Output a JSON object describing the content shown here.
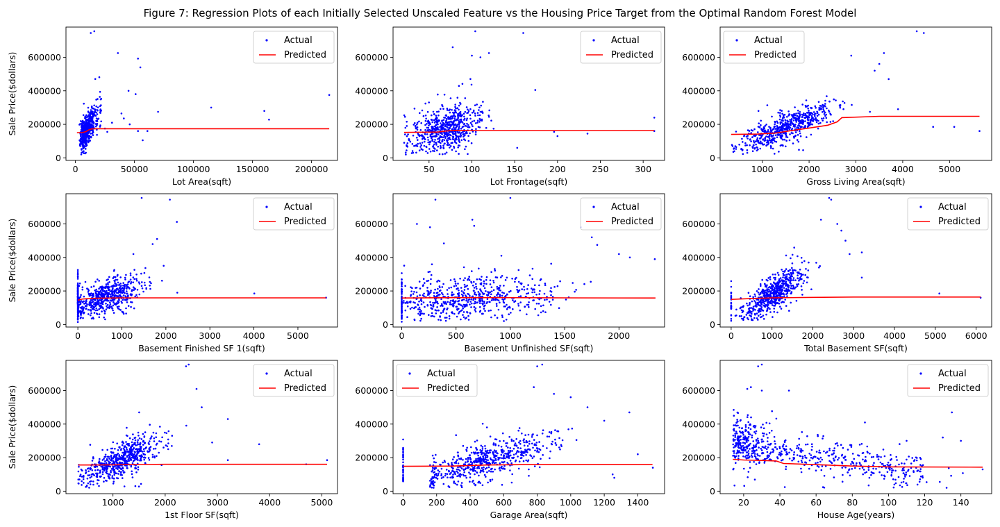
{
  "figure_title": "Figure 7: Regression Plots of each Initially Selected Unscaled Feature vs the Housing Price Target from the Optimal Random Forest Model",
  "colors": {
    "actual": "#0000ff",
    "predicted": "#ff0000",
    "axis": "#000000",
    "background": "#ffffff"
  },
  "chart_data": [
    {
      "type": "scatter",
      "xlabel": "Lot Area(sqft)",
      "ylabel": "Sale Price($dollars)",
      "xlim": [
        -8000,
        222000
      ],
      "xticks": [
        0,
        50000,
        100000,
        150000,
        200000
      ],
      "ylim": [
        -15000,
        780000
      ],
      "yticks": [
        0,
        200000,
        400000,
        600000
      ],
      "legend": {
        "position": "top-right",
        "entries": [
          "Actual",
          "Predicted"
        ]
      },
      "grid": false,
      "actual": {
        "name": "Actual",
        "dist": "skew",
        "x_center": 9500,
        "x_spread": 3500,
        "x_min": 1300,
        "x_max": 22000,
        "y_base": 60000,
        "y_slope": 11,
        "y_noise": 45000,
        "n": 520,
        "outliers": [
          [
            13000,
            745000
          ],
          [
            16000,
            755000
          ],
          [
            36000,
            625000
          ],
          [
            53000,
            592000
          ],
          [
            55000,
            540000
          ],
          [
            45000,
            400000
          ],
          [
            51000,
            380000
          ],
          [
            39000,
            265000
          ],
          [
            41000,
            235000
          ],
          [
            46000,
            200000
          ],
          [
            53000,
            160000
          ],
          [
            57000,
            105000
          ],
          [
            61000,
            160000
          ],
          [
            70000,
            275000
          ],
          [
            115000,
            300000
          ],
          [
            160000,
            280000
          ],
          [
            164000,
            228000
          ],
          [
            215000,
            375000
          ],
          [
            25000,
            175000
          ],
          [
            31000,
            210000
          ],
          [
            27000,
            155000
          ]
        ]
      },
      "predicted": {
        "name": "Predicted",
        "x": [
          1300,
          6000,
          9000,
          11000,
          14000,
          20000,
          50000,
          215000
        ],
        "y": [
          150000,
          151000,
          157000,
          166000,
          173000,
          174000,
          174000,
          174000
        ]
      }
    },
    {
      "type": "scatter",
      "xlabel": "Lot Frontage(sqft)",
      "ylabel": "",
      "xlim": [
        8,
        325
      ],
      "xticks": [
        50,
        100,
        150,
        200,
        250,
        300
      ],
      "ylim": [
        -15000,
        780000
      ],
      "yticks": [
        0,
        200000,
        400000,
        600000
      ],
      "legend": {
        "position": "top-right",
        "entries": [
          "Actual",
          "Predicted"
        ]
      },
      "grid": false,
      "actual": {
        "name": "Actual",
        "dist": "normal",
        "x_center": 70,
        "x_spread": 20,
        "x_min": 21,
        "x_max": 150,
        "y_base": 80000,
        "y_slope": 1400,
        "y_noise": 60000,
        "n": 620,
        "outliers": [
          [
            104,
            755000
          ],
          [
            160,
            745000
          ],
          [
            100,
            610000
          ],
          [
            110,
            600000
          ],
          [
            120,
            625000
          ],
          [
            174,
            405000
          ],
          [
            153,
            60000
          ],
          [
            200,
            130000
          ],
          [
            196,
            155000
          ],
          [
            235,
            145000
          ],
          [
            313,
            160000
          ],
          [
            313,
            240000
          ],
          [
            21,
            90000
          ],
          [
            22,
            140000
          ],
          [
            24,
            70000
          ]
        ]
      },
      "predicted": {
        "name": "Predicted",
        "x": [
          21,
          60,
          70,
          80,
          100,
          150,
          313
        ],
        "y": [
          152000,
          154000,
          160000,
          164000,
          163000,
          163000,
          163000
        ]
      }
    },
    {
      "type": "scatter",
      "xlabel": "Gross Living Area(sqft)",
      "ylabel": "",
      "xlim": [
        100,
        5900
      ],
      "xticks": [
        1000,
        2000,
        3000,
        4000,
        5000
      ],
      "ylim": [
        -15000,
        780000
      ],
      "yticks": [
        0,
        200000,
        400000,
        600000
      ],
      "legend": {
        "position": "top-left",
        "entries": [
          "Actual",
          "Predicted"
        ]
      },
      "grid": false,
      "actual": {
        "name": "Actual",
        "dist": "normal",
        "x_center": 1500,
        "x_spread": 500,
        "x_min": 334,
        "x_max": 3300,
        "y_base": 15000,
        "y_slope": 110,
        "y_noise": 40000,
        "n": 620,
        "outliers": [
          [
            4300,
            755000
          ],
          [
            4450,
            745000
          ],
          [
            3600,
            625000
          ],
          [
            3500,
            560000
          ],
          [
            3700,
            470000
          ],
          [
            3900,
            290000
          ],
          [
            3300,
            275000
          ],
          [
            4650,
            185000
          ],
          [
            5100,
            185000
          ],
          [
            5640,
            160000
          ],
          [
            3400,
            520000
          ],
          [
            2900,
            610000
          ]
        ]
      },
      "predicted": {
        "name": "Predicted",
        "x": [
          334,
          900,
          1300,
          1600,
          2000,
          2400,
          2600,
          2700,
          3500,
          5640
        ],
        "y": [
          140000,
          142000,
          148000,
          162000,
          178000,
          195000,
          215000,
          240000,
          248000,
          248000
        ]
      }
    },
    {
      "type": "scatter",
      "xlabel": "Basement Finished SF 1(sqft)",
      "ylabel": "Sale Price($dollars)",
      "xlim": [
        -270,
        5900
      ],
      "xticks": [
        0,
        1000,
        2000,
        3000,
        4000,
        5000
      ],
      "ylim": [
        -15000,
        780000
      ],
      "yticks": [
        0,
        200000,
        400000,
        600000
      ],
      "legend": {
        "position": "top-right",
        "entries": [
          "Actual",
          "Predicted"
        ]
      },
      "grid": false,
      "actual": {
        "name": "Actual",
        "dist": "normal",
        "x_center": 650,
        "x_spread": 380,
        "x_min": 0,
        "x_max": 2200,
        "y_base": 110000,
        "y_slope": 85,
        "y_noise": 45000,
        "n": 560,
        "zero_stack": 90,
        "outliers": [
          [
            1450,
            755000
          ],
          [
            2090,
            745000
          ],
          [
            2250,
            612000
          ],
          [
            1800,
            510000
          ],
          [
            1700,
            480000
          ],
          [
            2260,
            190000
          ],
          [
            4010,
            185000
          ],
          [
            5640,
            160000
          ],
          [
            1950,
            350000
          ]
        ]
      },
      "predicted": {
        "name": "Predicted",
        "x": [
          0,
          100,
          400,
          1000,
          5640
        ],
        "y": [
          145000,
          152000,
          157000,
          159000,
          159000
        ]
      }
    },
    {
      "type": "scatter",
      "xlabel": "Basement Unfinished SF(sqft)",
      "ylabel": "",
      "xlim": [
        -80,
        2420
      ],
      "xticks": [
        0,
        500,
        1000,
        1500,
        2000
      ],
      "ylim": [
        -15000,
        780000
      ],
      "yticks": [
        0,
        200000,
        400000,
        600000
      ],
      "legend": {
        "position": "top-right",
        "entries": [
          "Actual",
          "Predicted"
        ]
      },
      "grid": false,
      "actual": {
        "name": "Actual",
        "dist": "uniformish",
        "x_center": 550,
        "x_spread": 430,
        "x_min": 0,
        "x_max": 2150,
        "y_base": 140000,
        "y_slope": 30,
        "y_noise": 60000,
        "n": 600,
        "zero_stack": 70,
        "outliers": [
          [
            310,
            745000
          ],
          [
            1000,
            755000
          ],
          [
            650,
            625000
          ],
          [
            140,
            600000
          ],
          [
            260,
            580000
          ],
          [
            1650,
            580000
          ],
          [
            1750,
            520000
          ],
          [
            2000,
            420000
          ],
          [
            2100,
            400000
          ],
          [
            2330,
            390000
          ],
          [
            1800,
            475000
          ]
        ]
      },
      "predicted": {
        "name": "Predicted",
        "x": [
          0,
          500,
          1000,
          1500,
          2336
        ],
        "y": [
          158000,
          160000,
          160000,
          159000,
          158000
        ]
      }
    },
    {
      "type": "scatter",
      "xlabel": "Total Basement SF(sqft)",
      "ylabel": "",
      "xlim": [
        -270,
        6380
      ],
      "xticks": [
        0,
        1000,
        2000,
        3000,
        4000,
        5000,
        6000
      ],
      "ylim": [
        -15000,
        780000
      ],
      "yticks": [
        0,
        200000,
        400000,
        600000
      ],
      "legend": {
        "position": "top-right",
        "entries": [
          "Actual",
          "Predicted"
        ]
      },
      "grid": false,
      "actual": {
        "name": "Actual",
        "dist": "normal",
        "x_center": 1050,
        "x_spread": 380,
        "x_min": 100,
        "x_max": 2400,
        "y_base": 30000,
        "y_slope": 150,
        "y_noise": 45000,
        "n": 600,
        "zero_stack": 25,
        "outliers": [
          [
            2400,
            755000
          ],
          [
            2450,
            745000
          ],
          [
            2200,
            625000
          ],
          [
            2600,
            600000
          ],
          [
            2700,
            560000
          ],
          [
            2800,
            500000
          ],
          [
            3200,
            430000
          ],
          [
            3200,
            280000
          ],
          [
            5100,
            185000
          ],
          [
            6110,
            160000
          ],
          [
            2900,
            420000
          ]
        ]
      },
      "predicted": {
        "name": "Predicted",
        "x": [
          0,
          500,
          1000,
          2000,
          3000,
          6110
        ],
        "y": [
          150000,
          155000,
          159000,
          162000,
          164000,
          164000
        ]
      }
    },
    {
      "type": "scatter",
      "xlabel": "1st Floor SF(sqft)",
      "ylabel": "Sale Price($dollars)",
      "xlim": [
        100,
        5300
      ],
      "xticks": [
        1000,
        2000,
        3000,
        4000,
        5000
      ],
      "ylim": [
        -15000,
        780000
      ],
      "yticks": [
        0,
        200000,
        400000,
        600000
      ],
      "legend": {
        "position": "top-right",
        "entries": [
          "Actual",
          "Predicted"
        ]
      },
      "grid": false,
      "actual": {
        "name": "Actual",
        "dist": "normal",
        "x_center": 1150,
        "x_spread": 370,
        "x_min": 334,
        "x_max": 2700,
        "y_base": 20000,
        "y_slope": 145,
        "y_noise": 45000,
        "n": 600,
        "outliers": [
          [
            2400,
            745000
          ],
          [
            2450,
            755000
          ],
          [
            2600,
            610000
          ],
          [
            2700,
            500000
          ],
          [
            3200,
            430000
          ],
          [
            3200,
            185000
          ],
          [
            3800,
            280000
          ],
          [
            4700,
            160000
          ],
          [
            5100,
            185000
          ],
          [
            2900,
            290000
          ]
        ]
      },
      "predicted": {
        "name": "Predicted",
        "x": [
          334,
          1000,
          1500,
          2000,
          3000,
          5100
        ],
        "y": [
          156000,
          157000,
          159000,
          160000,
          160000,
          160000
        ]
      }
    },
    {
      "type": "scatter",
      "xlabel": "Garage Area(sqft)",
      "ylabel": "",
      "xlim": [
        -60,
        1560
      ],
      "xticks": [
        0,
        200,
        400,
        600,
        800,
        1000,
        1200,
        1400
      ],
      "ylim": [
        -15000,
        780000
      ],
      "yticks": [
        0,
        200000,
        400000,
        600000
      ],
      "legend": {
        "position": "top-left",
        "entries": [
          "Actual",
          "Predicted"
        ]
      },
      "grid": false,
      "actual": {
        "name": "Actual",
        "dist": "normal",
        "x_center": 500,
        "x_spread": 190,
        "x_min": 160,
        "x_max": 1200,
        "y_base": 40000,
        "y_slope": 290,
        "y_noise": 50000,
        "n": 600,
        "zero_stack": 35,
        "outliers": [
          [
            800,
            745000
          ],
          [
            830,
            755000
          ],
          [
            780,
            620000
          ],
          [
            900,
            580000
          ],
          [
            1000,
            560000
          ],
          [
            1100,
            500000
          ],
          [
            1200,
            420000
          ],
          [
            1350,
            470000
          ],
          [
            1400,
            220000
          ],
          [
            1490,
            140000
          ],
          [
            1260,
            80000
          ],
          [
            1250,
            100000
          ]
        ]
      },
      "predicted": {
        "name": "Predicted",
        "x": [
          0,
          300,
          500,
          700,
          1000,
          1488
        ],
        "y": [
          148000,
          150000,
          156000,
          158000,
          158000,
          158000
        ]
      }
    },
    {
      "type": "scatter",
      "xlabel": "House Age(years)",
      "ylabel": "",
      "xlim": [
        7,
        157
      ],
      "xticks": [
        20,
        40,
        60,
        80,
        100,
        120,
        140
      ],
      "ylim": [
        -15000,
        780000
      ],
      "yticks": [
        0,
        200000,
        400000,
        600000
      ],
      "legend": {
        "position": "top-right",
        "entries": [
          "Actual",
          "Predicted"
        ]
      },
      "grid": false,
      "actual": {
        "name": "Actual",
        "dist": "age",
        "x_center": 45,
        "x_spread": 28,
        "x_min": 14,
        "x_max": 152,
        "y_base": 290000,
        "y_slope": -1500,
        "y_noise": 50000,
        "n": 620,
        "outliers": [
          [
            28,
            745000
          ],
          [
            30,
            755000
          ],
          [
            22,
            610000
          ],
          [
            24,
            620000
          ],
          [
            30,
            600000
          ],
          [
            45,
            600000
          ],
          [
            87,
            410000
          ],
          [
            130,
            320000
          ],
          [
            140,
            300000
          ],
          [
            135,
            470000
          ],
          [
            152,
            130000
          ],
          [
            110,
            300000
          ]
        ]
      },
      "predicted": {
        "name": "Predicted",
        "x": [
          14,
          20,
          30,
          38,
          42,
          60,
          80,
          100,
          152
        ],
        "y": [
          190000,
          186000,
          183000,
          180000,
          165000,
          158000,
          150000,
          145000,
          143000
        ]
      }
    }
  ]
}
